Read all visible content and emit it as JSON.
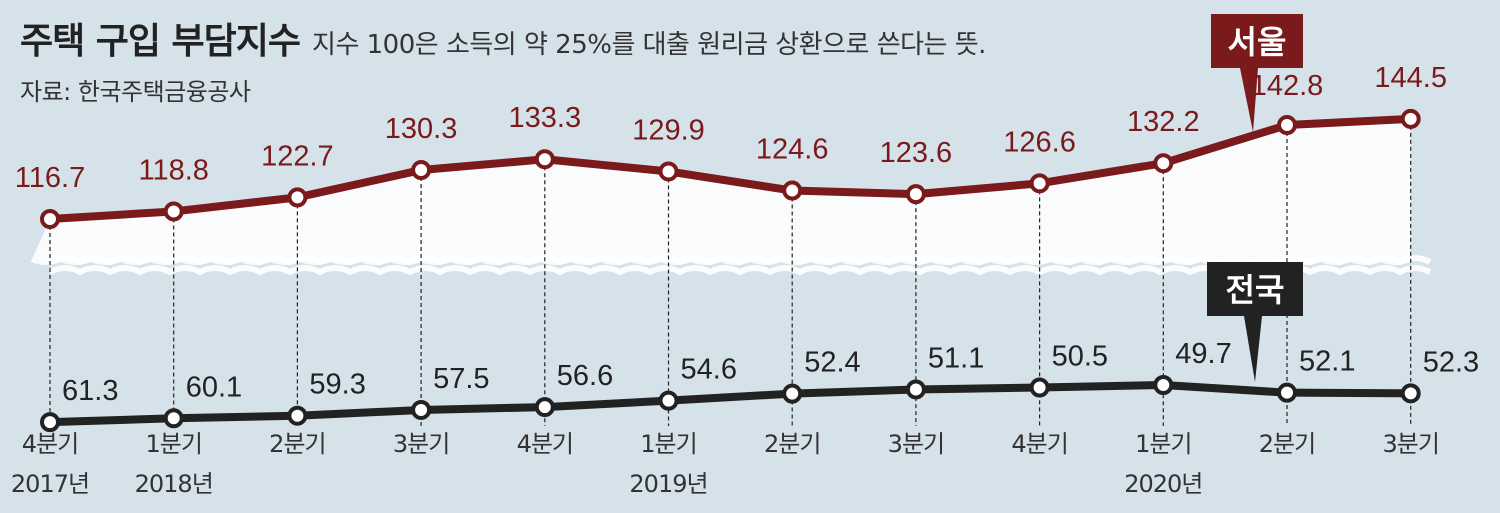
{
  "header": {
    "title": "주택 구입 부담지수",
    "subtitle": "지수 100은 소득의 약 25%를 대출 원리금 상환으로 쓴다는 뜻.",
    "source": "자료: 한국주택금융공사"
  },
  "chart_data": {
    "type": "line",
    "title": "주택 구입 부담지수",
    "categories": [
      "4분기",
      "1분기",
      "2분기",
      "3분기",
      "4분기",
      "1분기",
      "2분기",
      "3분기",
      "4분기",
      "1분기",
      "2분기",
      "3분기"
    ],
    "year_labels": [
      "2017년",
      "2018년",
      "",
      "",
      "",
      "2019년",
      "",
      "",
      "",
      "2020년",
      "",
      ""
    ],
    "series": [
      {
        "name": "서울",
        "values": [
          116.7,
          118.8,
          122.7,
          130.3,
          133.3,
          129.9,
          124.6,
          123.6,
          126.6,
          132.2,
          142.8,
          144.5
        ]
      },
      {
        "name": "전국",
        "values": [
          61.3,
          60.1,
          59.3,
          57.5,
          56.6,
          54.6,
          52.4,
          51.1,
          50.5,
          49.7,
          52.1,
          52.3
        ]
      }
    ],
    "axis_break": true,
    "grid": "vertical-dashed",
    "colors": {
      "서울": "#7a1a1a",
      "전국": "#222222",
      "background": "#d6e2ea"
    }
  }
}
